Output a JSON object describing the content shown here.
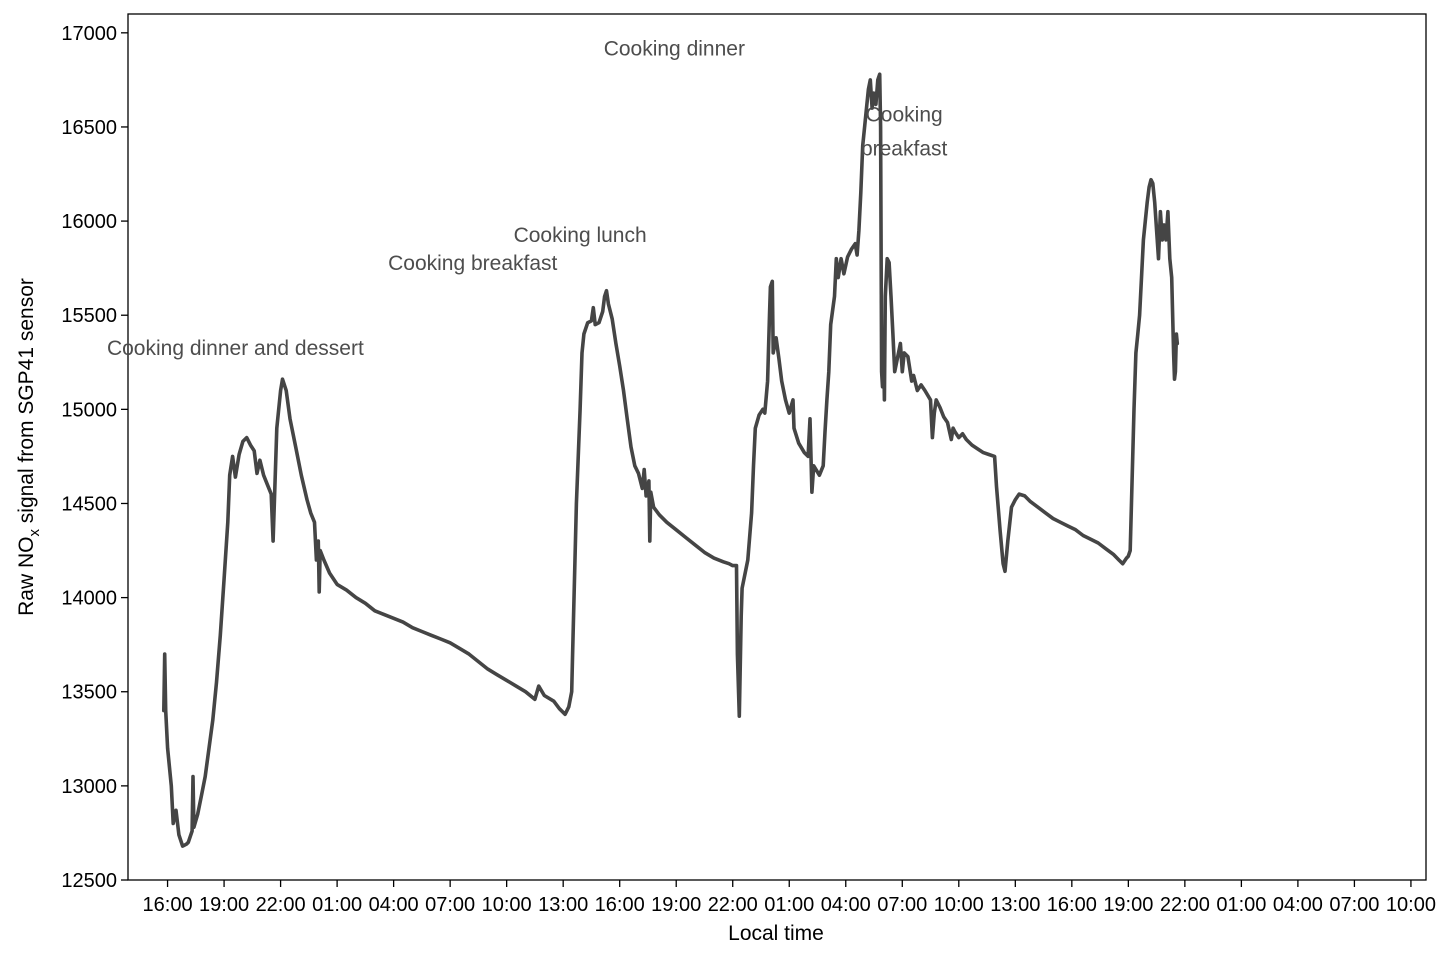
{
  "chart_data": {
    "type": "line",
    "title": "",
    "xlabel": "Local time",
    "ylabel_main": "Raw NO",
    "ylabel_sub": "x",
    "ylabel_rest": " signal from SGP41 sensor",
    "ylim": [
      12500,
      17100
    ],
    "x_unit": "hours since 16:00 on day 1",
    "xlim": [
      -2.1,
      66.8
    ],
    "grid": false,
    "legend": "none",
    "colors": {
      "line": "#454545",
      "annotation": "#4d4d4d",
      "axis": "#000000",
      "background": "#ffffff"
    },
    "y_ticks": [
      12500,
      13000,
      13500,
      14000,
      14500,
      15000,
      15500,
      16000,
      16500,
      17000
    ],
    "y_tick_labels": [
      "12500",
      "13000",
      "13500",
      "14000",
      "14500",
      "15000",
      "15500",
      "16000",
      "16500",
      "17000"
    ],
    "x_ticks": [
      0,
      3,
      6,
      9,
      12,
      15,
      18,
      21,
      24,
      27,
      30,
      33,
      36,
      39,
      42,
      45,
      48,
      51,
      54,
      57,
      60,
      63,
      66
    ],
    "x_tick_labels": [
      "16:00",
      "19:00",
      "22:00",
      "01:00",
      "04:00",
      "07:00",
      "10:00",
      "13:00",
      "16:00",
      "19:00",
      "22:00",
      "01:00",
      "04:00",
      "07:00",
      "10:00",
      "13:00",
      "16:00",
      "19:00",
      "22:00",
      "01:00",
      "04:00",
      "07:00",
      "10:00"
    ],
    "annotations": [
      {
        "lines": [
          "Cooking dinner and dessert"
        ],
        "x": 3.6,
        "y": 15290
      },
      {
        "lines": [
          "Cooking breakfast"
        ],
        "x": 16.2,
        "y": 15740
      },
      {
        "lines": [
          "Cooking lunch"
        ],
        "x": 21.9,
        "y": 15890
      },
      {
        "lines": [
          "Cooking dinner"
        ],
        "x": 26.9,
        "y": 16880
      },
      {
        "lines": [
          "Cooking",
          "breakfast"
        ],
        "x": 39.1,
        "y": 16530
      }
    ],
    "series": [
      {
        "values": [
          [
            -0.2,
            13400
          ],
          [
            -0.15,
            13700
          ],
          [
            -0.1,
            13400
          ],
          [
            0.0,
            13200
          ],
          [
            0.2,
            13000
          ],
          [
            0.3,
            12800
          ],
          [
            0.45,
            12870
          ],
          [
            0.6,
            12740
          ],
          [
            0.8,
            12680
          ],
          [
            1.0,
            12690
          ],
          [
            1.1,
            12700
          ],
          [
            1.3,
            12760
          ],
          [
            1.35,
            13050
          ],
          [
            1.4,
            12780
          ],
          [
            1.6,
            12850
          ],
          [
            1.8,
            12950
          ],
          [
            2.0,
            13050
          ],
          [
            2.2,
            13200
          ],
          [
            2.4,
            13350
          ],
          [
            2.6,
            13550
          ],
          [
            2.8,
            13800
          ],
          [
            3.0,
            14100
          ],
          [
            3.2,
            14400
          ],
          [
            3.3,
            14650
          ],
          [
            3.45,
            14750
          ],
          [
            3.6,
            14640
          ],
          [
            3.8,
            14760
          ],
          [
            4.0,
            14830
          ],
          [
            4.2,
            14850
          ],
          [
            4.4,
            14810
          ],
          [
            4.6,
            14780
          ],
          [
            4.75,
            14660
          ],
          [
            4.9,
            14730
          ],
          [
            5.1,
            14650
          ],
          [
            5.3,
            14600
          ],
          [
            5.5,
            14550
          ],
          [
            5.6,
            14300
          ],
          [
            5.8,
            14900
          ],
          [
            6.0,
            15100
          ],
          [
            6.1,
            15160
          ],
          [
            6.3,
            15100
          ],
          [
            6.5,
            14950
          ],
          [
            6.8,
            14800
          ],
          [
            7.1,
            14650
          ],
          [
            7.4,
            14520
          ],
          [
            7.6,
            14450
          ],
          [
            7.8,
            14400
          ],
          [
            7.9,
            14200
          ],
          [
            8.0,
            14300
          ],
          [
            8.05,
            14030
          ],
          [
            8.1,
            14250
          ],
          [
            8.3,
            14200
          ],
          [
            8.6,
            14130
          ],
          [
            9.0,
            14070
          ],
          [
            9.5,
            14040
          ],
          [
            10.0,
            14000
          ],
          [
            10.5,
            13970
          ],
          [
            11.0,
            13930
          ],
          [
            11.5,
            13910
          ],
          [
            12.0,
            13890
          ],
          [
            12.5,
            13870
          ],
          [
            13.0,
            13840
          ],
          [
            13.5,
            13820
          ],
          [
            14.0,
            13800
          ],
          [
            14.5,
            13780
          ],
          [
            15.0,
            13760
          ],
          [
            15.5,
            13730
          ],
          [
            16.0,
            13700
          ],
          [
            16.5,
            13660
          ],
          [
            17.0,
            13620
          ],
          [
            17.5,
            13590
          ],
          [
            18.0,
            13560
          ],
          [
            18.5,
            13530
          ],
          [
            19.0,
            13500
          ],
          [
            19.5,
            13460
          ],
          [
            19.7,
            13530
          ],
          [
            20.0,
            13480
          ],
          [
            20.5,
            13450
          ],
          [
            20.8,
            13410
          ],
          [
            21.1,
            13380
          ],
          [
            21.3,
            13420
          ],
          [
            21.45,
            13500
          ],
          [
            21.5,
            13700
          ],
          [
            21.7,
            14500
          ],
          [
            21.9,
            15000
          ],
          [
            22.0,
            15300
          ],
          [
            22.1,
            15400
          ],
          [
            22.3,
            15460
          ],
          [
            22.5,
            15470
          ],
          [
            22.6,
            15540
          ],
          [
            22.7,
            15450
          ],
          [
            22.9,
            15460
          ],
          [
            23.1,
            15520
          ],
          [
            23.2,
            15600
          ],
          [
            23.3,
            15630
          ],
          [
            23.4,
            15560
          ],
          [
            23.6,
            15480
          ],
          [
            23.8,
            15350
          ],
          [
            24.0,
            15230
          ],
          [
            24.2,
            15100
          ],
          [
            24.4,
            14950
          ],
          [
            24.6,
            14800
          ],
          [
            24.8,
            14700
          ],
          [
            25.0,
            14660
          ],
          [
            25.2,
            14580
          ],
          [
            25.3,
            14680
          ],
          [
            25.4,
            14540
          ],
          [
            25.55,
            14620
          ],
          [
            25.6,
            14300
          ],
          [
            25.65,
            14560
          ],
          [
            25.8,
            14480
          ],
          [
            26.1,
            14440
          ],
          [
            26.5,
            14400
          ],
          [
            27.0,
            14360
          ],
          [
            27.5,
            14320
          ],
          [
            28.0,
            14280
          ],
          [
            28.5,
            14240
          ],
          [
            29.0,
            14210
          ],
          [
            29.5,
            14190
          ],
          [
            29.8,
            14180
          ],
          [
            30.0,
            14170
          ],
          [
            30.2,
            14170
          ],
          [
            30.25,
            13700
          ],
          [
            30.35,
            13370
          ],
          [
            30.45,
            13900
          ],
          [
            30.5,
            14050
          ],
          [
            30.8,
            14200
          ],
          [
            31.0,
            14450
          ],
          [
            31.1,
            14700
          ],
          [
            31.2,
            14900
          ],
          [
            31.4,
            14970
          ],
          [
            31.6,
            15000
          ],
          [
            31.7,
            14980
          ],
          [
            31.85,
            15150
          ],
          [
            31.95,
            15500
          ],
          [
            32.0,
            15650
          ],
          [
            32.1,
            15680
          ],
          [
            32.15,
            15300
          ],
          [
            32.3,
            15380
          ],
          [
            32.45,
            15270
          ],
          [
            32.6,
            15150
          ],
          [
            32.8,
            15050
          ],
          [
            33.0,
            14980
          ],
          [
            33.2,
            15050
          ],
          [
            33.25,
            14900
          ],
          [
            33.5,
            14820
          ],
          [
            33.8,
            14770
          ],
          [
            34.0,
            14750
          ],
          [
            34.1,
            14950
          ],
          [
            34.2,
            14560
          ],
          [
            34.3,
            14700
          ],
          [
            34.6,
            14650
          ],
          [
            34.8,
            14700
          ],
          [
            34.9,
            14880
          ],
          [
            35.0,
            15050
          ],
          [
            35.1,
            15200
          ],
          [
            35.2,
            15450
          ],
          [
            35.4,
            15600
          ],
          [
            35.5,
            15800
          ],
          [
            35.6,
            15700
          ],
          [
            35.75,
            15800
          ],
          [
            35.9,
            15720
          ],
          [
            36.1,
            15810
          ],
          [
            36.3,
            15850
          ],
          [
            36.5,
            15880
          ],
          [
            36.6,
            15820
          ],
          [
            36.7,
            15950
          ],
          [
            36.8,
            16150
          ],
          [
            36.9,
            16400
          ],
          [
            37.0,
            16500
          ],
          [
            37.1,
            16600
          ],
          [
            37.2,
            16700
          ],
          [
            37.3,
            16750
          ],
          [
            37.4,
            16600
          ],
          [
            37.5,
            16680
          ],
          [
            37.6,
            16620
          ],
          [
            37.7,
            16750
          ],
          [
            37.8,
            16780
          ],
          [
            37.85,
            16500
          ],
          [
            37.9,
            15200
          ],
          [
            37.95,
            15120
          ],
          [
            38.0,
            15400
          ],
          [
            38.05,
            15050
          ],
          [
            38.1,
            15600
          ],
          [
            38.2,
            15800
          ],
          [
            38.3,
            15780
          ],
          [
            38.4,
            15600
          ],
          [
            38.5,
            15400
          ],
          [
            38.6,
            15200
          ],
          [
            38.7,
            15250
          ],
          [
            38.9,
            15350
          ],
          [
            39.0,
            15200
          ],
          [
            39.1,
            15300
          ],
          [
            39.3,
            15280
          ],
          [
            39.5,
            15150
          ],
          [
            39.6,
            15180
          ],
          [
            39.8,
            15100
          ],
          [
            40.0,
            15130
          ],
          [
            40.2,
            15100
          ],
          [
            40.5,
            15050
          ],
          [
            40.6,
            14850
          ],
          [
            40.7,
            14980
          ],
          [
            40.8,
            15050
          ],
          [
            41.0,
            15010
          ],
          [
            41.2,
            14960
          ],
          [
            41.4,
            14930
          ],
          [
            41.6,
            14840
          ],
          [
            41.7,
            14900
          ],
          [
            41.8,
            14880
          ],
          [
            42.0,
            14850
          ],
          [
            42.2,
            14870
          ],
          [
            42.4,
            14840
          ],
          [
            42.7,
            14810
          ],
          [
            43.0,
            14790
          ],
          [
            43.3,
            14770
          ],
          [
            43.6,
            14760
          ],
          [
            43.9,
            14750
          ],
          [
            44.0,
            14590
          ],
          [
            44.2,
            14350
          ],
          [
            44.35,
            14180
          ],
          [
            44.45,
            14140
          ],
          [
            44.6,
            14300
          ],
          [
            44.8,
            14480
          ],
          [
            45.0,
            14520
          ],
          [
            45.2,
            14550
          ],
          [
            45.5,
            14540
          ],
          [
            45.8,
            14510
          ],
          [
            46.2,
            14480
          ],
          [
            46.6,
            14450
          ],
          [
            47.0,
            14420
          ],
          [
            47.4,
            14400
          ],
          [
            47.8,
            14380
          ],
          [
            48.2,
            14360
          ],
          [
            48.6,
            14330
          ],
          [
            49.0,
            14310
          ],
          [
            49.4,
            14290
          ],
          [
            49.8,
            14260
          ],
          [
            50.2,
            14230
          ],
          [
            50.5,
            14200
          ],
          [
            50.7,
            14180
          ],
          [
            50.9,
            14210
          ],
          [
            51.0,
            14220
          ],
          [
            51.1,
            14250
          ],
          [
            51.3,
            15000
          ],
          [
            51.4,
            15300
          ],
          [
            51.5,
            15400
          ],
          [
            51.6,
            15500
          ],
          [
            51.7,
            15700
          ],
          [
            51.8,
            15900
          ],
          [
            51.9,
            16000
          ],
          [
            52.0,
            16100
          ],
          [
            52.1,
            16180
          ],
          [
            52.2,
            16220
          ],
          [
            52.3,
            16200
          ],
          [
            52.4,
            16100
          ],
          [
            52.5,
            15950
          ],
          [
            52.6,
            15800
          ],
          [
            52.7,
            16050
          ],
          [
            52.8,
            15900
          ],
          [
            52.9,
            15980
          ],
          [
            53.0,
            15900
          ],
          [
            53.1,
            16050
          ],
          [
            53.2,
            15800
          ],
          [
            53.3,
            15700
          ],
          [
            53.4,
            15300
          ],
          [
            53.45,
            15160
          ],
          [
            53.5,
            15200
          ],
          [
            53.55,
            15400
          ],
          [
            53.6,
            15350
          ]
        ]
      }
    ]
  }
}
